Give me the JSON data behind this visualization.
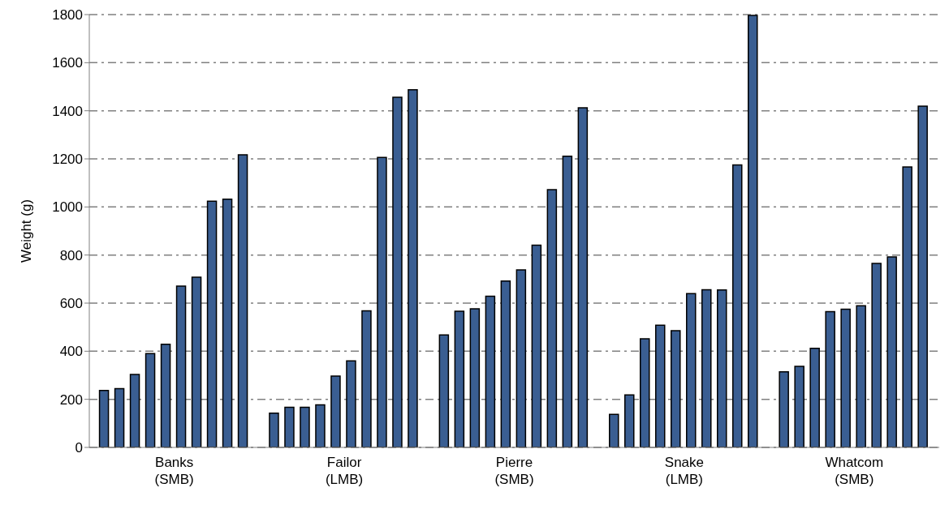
{
  "chart_data": {
    "type": "bar",
    "ylabel": "Weight  (g)",
    "categories": [
      "Banks\n(SMB)",
      "Failor\n(LMB)",
      "Pierre\n(SMB)",
      "Snake\n(LMB)",
      "Whatcom\n(SMB)"
    ],
    "series": [
      {
        "color": "#3a5e92",
        "values": [
          237,
          142,
          468,
          137,
          314
        ]
      },
      {
        "color": "#3a5e92",
        "values": [
          244,
          167,
          566,
          218,
          337
        ]
      },
      {
        "color": "#3a5e92",
        "values": [
          303,
          167,
          576,
          452,
          412
        ]
      },
      {
        "color": "#3a5e92",
        "values": [
          390,
          177,
          629,
          508,
          565
        ]
      },
      {
        "color": "#3a5e92",
        "values": [
          429,
          297,
          692,
          485,
          575
        ]
      },
      {
        "color": "#3a5e92",
        "values": [
          671,
          360,
          738,
          640,
          589
        ]
      },
      {
        "color": "#3a5e92",
        "values": [
          708,
          568,
          841,
          656,
          765
        ]
      },
      {
        "color": "#3a5e92",
        "values": [
          1024,
          1206,
          1072,
          655,
          792
        ]
      },
      {
        "color": "#3a5e92",
        "values": [
          1032,
          1456,
          1211,
          1175,
          1166
        ]
      },
      {
        "color": "#3a5e92",
        "values": [
          1217,
          1487,
          1412,
          1797,
          1419
        ]
      }
    ],
    "ylim": [
      0,
      1800
    ],
    "yticks": [
      0,
      200,
      400,
      600,
      800,
      1000,
      1200,
      1400,
      1600,
      1800
    ],
    "grid": "y"
  }
}
